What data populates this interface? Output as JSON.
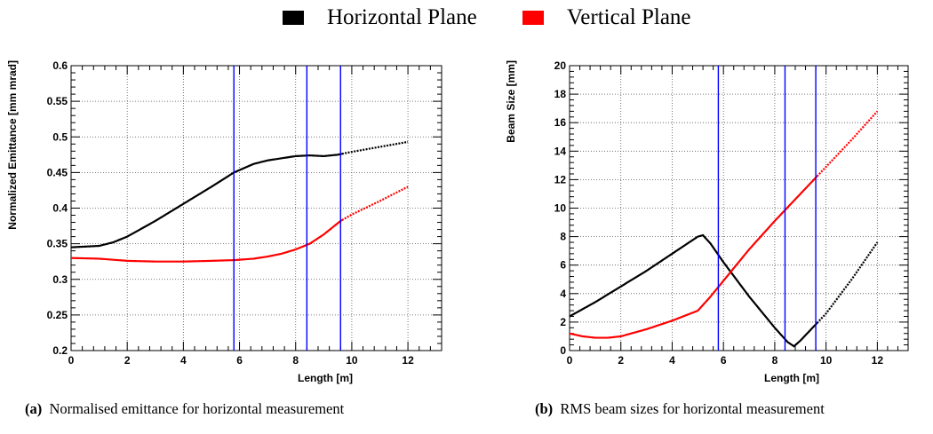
{
  "legend": [
    {
      "label": "Horizontal Plane",
      "color": "#000000"
    },
    {
      "label": "Vertical Plane",
      "color": "#ff0000"
    }
  ],
  "colors": {
    "horizontal": "#000000",
    "vertical": "#ff0000",
    "markers": "#0000ff",
    "grid": "#555555"
  },
  "captions": [
    {
      "tag": "(a)",
      "text": "Normalised emittance for horizontal measurement"
    },
    {
      "tag": "(b)",
      "text": "RMS beam sizes for horizontal measurement"
    }
  ],
  "chart_data": [
    {
      "type": "line",
      "xlabel": "Length [m]",
      "ylabel": "Normalized Emittance [mm mrad]",
      "xlim": [
        0,
        13.2
      ],
      "ylim": [
        0.2,
        0.6
      ],
      "xticks": [
        0,
        2,
        4,
        6,
        8,
        10,
        12
      ],
      "yticks": [
        0.2,
        0.25,
        0.3,
        0.35,
        0.4,
        0.45,
        0.5,
        0.55,
        0.6
      ],
      "ytick_labels": [
        "0.2",
        "0.25",
        "0.3",
        "0.35",
        "0.4",
        "0.45",
        "0.5",
        "0.55",
        "0.6"
      ],
      "grid": true,
      "legend_position": "top",
      "vertical_markers": [
        5.8,
        8.4,
        9.6
      ],
      "dotted_from_x": 9.7,
      "series": [
        {
          "name": "Horizontal Plane",
          "color": "#000000",
          "x": [
            0,
            1,
            1.5,
            2,
            3,
            4,
            5,
            5.8,
            6.5,
            7,
            8,
            8.5,
            9,
            9.5,
            10,
            11,
            12
          ],
          "y": [
            0.345,
            0.347,
            0.352,
            0.36,
            0.382,
            0.406,
            0.43,
            0.45,
            0.462,
            0.467,
            0.473,
            0.474,
            0.473,
            0.475,
            0.479,
            0.486,
            0.493
          ]
        },
        {
          "name": "Vertical Plane",
          "color": "#ff0000",
          "x": [
            0,
            1,
            2,
            3,
            4,
            5,
            5.8,
            6.5,
            7,
            7.5,
            8,
            8.5,
            9,
            9.6,
            10,
            11,
            12
          ],
          "y": [
            0.33,
            0.329,
            0.326,
            0.325,
            0.325,
            0.326,
            0.327,
            0.329,
            0.332,
            0.336,
            0.342,
            0.35,
            0.363,
            0.382,
            0.391,
            0.41,
            0.43
          ]
        }
      ]
    },
    {
      "type": "line",
      "xlabel": "Length [m]",
      "ylabel": "Beam Size [mm]",
      "xlim": [
        0,
        13.2
      ],
      "ylim": [
        0,
        20
      ],
      "xticks": [
        0,
        2,
        4,
        6,
        8,
        10,
        12
      ],
      "yticks": [
        0,
        2,
        4,
        6,
        8,
        10,
        12,
        14,
        16,
        18,
        20
      ],
      "ytick_labels": [
        "0",
        "2",
        "4",
        "6",
        "8",
        "10",
        "12",
        "14",
        "16",
        "18",
        "20"
      ],
      "grid": true,
      "legend_position": "top",
      "vertical_markers": [
        5.8,
        8.4,
        9.6
      ],
      "dotted_from_x": 9.7,
      "series": [
        {
          "name": "Horizontal Plane",
          "color": "#000000",
          "x": [
            0,
            1,
            2,
            3,
            4,
            5,
            5.2,
            5.5,
            6,
            7,
            8,
            8.5,
            8.75,
            9,
            10,
            11,
            12
          ],
          "y": [
            2.4,
            3.4,
            4.5,
            5.6,
            6.8,
            8.0,
            8.1,
            7.5,
            6.2,
            3.8,
            1.6,
            0.6,
            0.3,
            0.7,
            2.6,
            5.0,
            7.6
          ]
        },
        {
          "name": "Vertical Plane",
          "color": "#ff0000",
          "x": [
            0,
            0.5,
            1,
            1.5,
            2,
            3,
            4,
            5,
            5.5,
            6,
            7,
            8,
            9,
            10,
            11,
            12
          ],
          "y": [
            1.2,
            1.0,
            0.9,
            0.9,
            1.0,
            1.5,
            2.1,
            2.8,
            3.8,
            4.9,
            7.1,
            9.1,
            11.0,
            12.9,
            14.8,
            16.8
          ]
        }
      ]
    }
  ]
}
